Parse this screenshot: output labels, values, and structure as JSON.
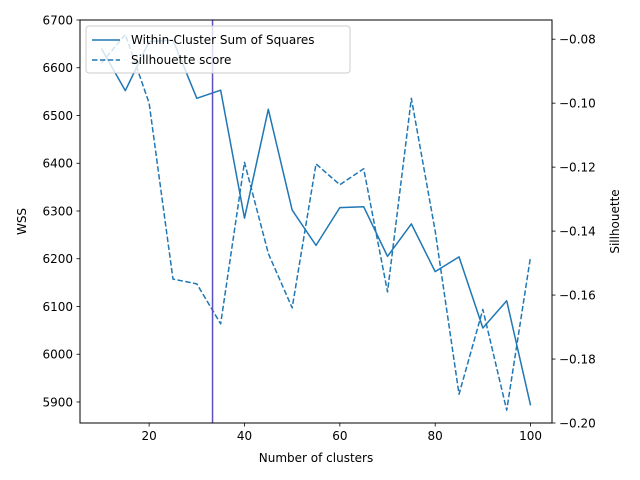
{
  "chart_data": {
    "type": "line",
    "title": "",
    "xlabel": "Number of clusters",
    "ylabel": "WSS",
    "y2label": "Sillhouette",
    "xlim": [
      5.5,
      104.5
    ],
    "ylim": [
      5856,
      6700
    ],
    "y2lim": [
      -0.2,
      -0.074
    ],
    "xticks": [
      20,
      40,
      60,
      80,
      100
    ],
    "xtick_labels": [
      "20",
      "40",
      "60",
      "80",
      "100"
    ],
    "yticks": [
      5900,
      6000,
      6100,
      6200,
      6300,
      6400,
      6500,
      6600,
      6700
    ],
    "ytick_labels": [
      "5900",
      "6000",
      "6100",
      "6200",
      "6300",
      "6400",
      "6500",
      "6600",
      "6700"
    ],
    "y2ticks": [
      -0.2,
      -0.18,
      -0.16,
      -0.14,
      -0.12,
      -0.1,
      -0.08
    ],
    "y2tick_labels": [
      "−0.20",
      "−0.18",
      "−0.16",
      "−0.14",
      "−0.12",
      "−0.10",
      "−0.08"
    ],
    "x": [
      10,
      15,
      20,
      25,
      30,
      35,
      40,
      45,
      50,
      55,
      60,
      65,
      70,
      75,
      80,
      85,
      90,
      95,
      100
    ],
    "series": [
      {
        "name": "Within-Cluster Sum of Squares",
        "axis": "left",
        "style": "solid",
        "color": "#1f77b4",
        "values": [
          6640,
          6552,
          6655,
          6658,
          6536,
          6553,
          6285,
          6513,
          6302,
          6228,
          6307,
          6309,
          6205,
          6273,
          6173,
          6204,
          6055,
          6112,
          5893
        ]
      },
      {
        "name": "Sillhouette score",
        "axis": "right",
        "style": "dashed",
        "color": "#1f77b4",
        "values": [
          -0.0875,
          -0.0785,
          -0.1,
          -0.155,
          -0.1565,
          -0.169,
          -0.1185,
          -0.147,
          -0.164,
          -0.119,
          -0.1255,
          -0.1205,
          -0.159,
          -0.0985,
          -0.14,
          -0.191,
          -0.1645,
          -0.196,
          -0.148
        ]
      }
    ],
    "vline": {
      "x": 33.3,
      "color": "#5b4fc4"
    },
    "legend": "top-left"
  }
}
